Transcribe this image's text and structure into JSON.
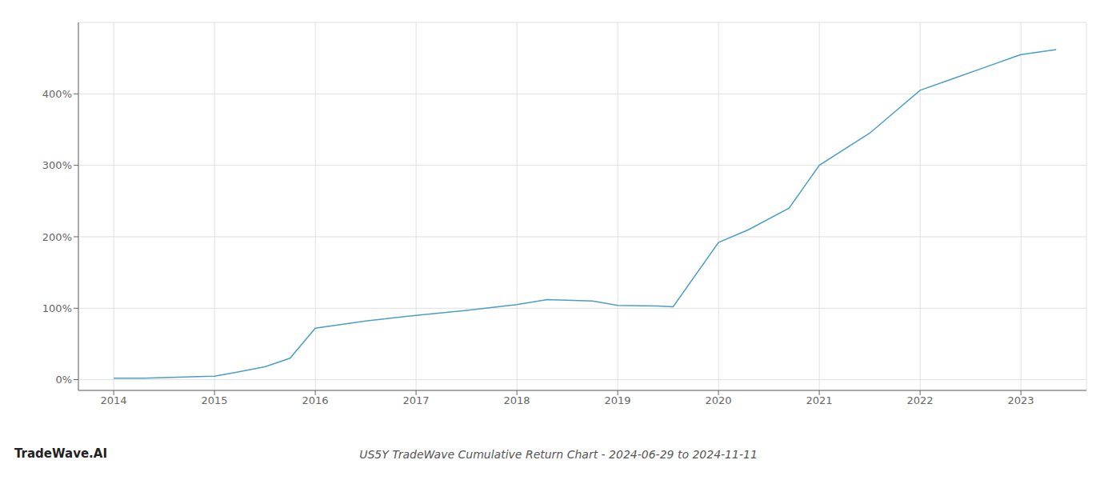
{
  "chart_data": {
    "type": "line",
    "title": "US5Y TradeWave Cumulative Return Chart - 2024-06-29 to 2024-11-11",
    "annotations": [
      "TradeWave.AI"
    ],
    "x": [
      2014.0,
      2014.3,
      2015.0,
      2015.2,
      2015.5,
      2015.75,
      2016.0,
      2016.5,
      2017.0,
      2017.5,
      2018.0,
      2018.3,
      2018.75,
      2019.0,
      2019.4,
      2019.55,
      2020.0,
      2020.3,
      2020.7,
      2021.0,
      2021.5,
      2022.0,
      2022.3,
      2022.7,
      2023.0,
      2023.35
    ],
    "values": [
      2,
      2,
      5,
      10,
      18,
      30,
      72,
      82,
      90,
      97,
      105,
      112,
      110,
      104,
      103,
      102,
      192,
      210,
      240,
      300,
      345,
      405,
      420,
      440,
      455,
      462
    ],
    "color": "#4a9fc4",
    "xlim": [
      2013.65,
      2023.65
    ],
    "ylim": [
      -15,
      500
    ],
    "xticks": [
      2014,
      2015,
      2016,
      2017,
      2018,
      2019,
      2020,
      2021,
      2022,
      2023
    ],
    "yticks": [
      {
        "value": 0,
        "label": "0%"
      },
      {
        "value": 100,
        "label": "100%"
      },
      {
        "value": 200,
        "label": "200%"
      },
      {
        "value": 300,
        "label": "300%"
      },
      {
        "value": 400,
        "label": "400%"
      }
    ],
    "grid": true
  }
}
